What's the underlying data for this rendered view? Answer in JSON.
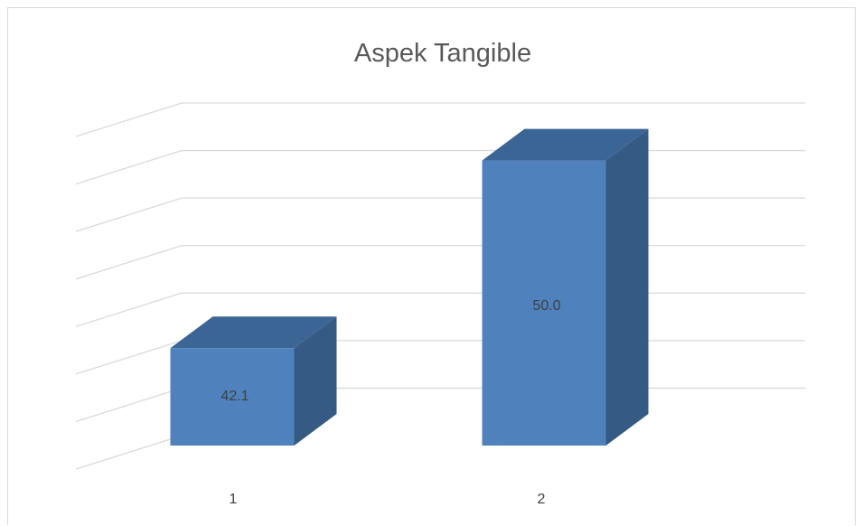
{
  "chart_data": {
    "type": "bar",
    "title": "Aspek Tangible",
    "categories": [
      "1",
      "2"
    ],
    "values": [
      42.1,
      50.0
    ],
    "data_labels": [
      "42.1",
      "50.0"
    ],
    "xlabel": "",
    "ylabel": "",
    "ylim": [
      38,
      52
    ],
    "gridlines": [
      40,
      42,
      44,
      46,
      48,
      50,
      52
    ],
    "grid": true,
    "legend": "none",
    "style": "3d-column",
    "colors": {
      "front": "#4f81bd",
      "top": "#3b6595",
      "side": "#355a83",
      "grid": "#d9d9d9",
      "text": "#404040",
      "title": "#595959"
    }
  }
}
